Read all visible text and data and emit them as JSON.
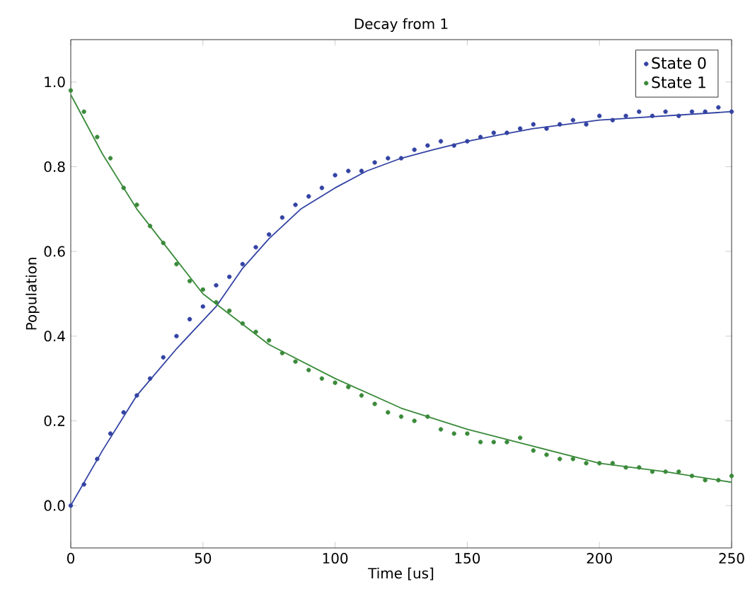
{
  "chart_data": {
    "type": "scatter",
    "title": "Decay from 1",
    "xlabel": "Time [us]",
    "ylabel": "Population",
    "xlim": [
      0,
      250
    ],
    "ylim": [
      -0.1,
      1.1
    ],
    "xticks": [
      0,
      50,
      100,
      150,
      200,
      250
    ],
    "yticks": [
      {
        "value": 0,
        "label": "0.0"
      },
      {
        "value": 0.2,
        "label": "0.2"
      },
      {
        "value": 0.4,
        "label": "0.4"
      },
      {
        "value": 0.6,
        "label": "0.6"
      },
      {
        "value": 0.8,
        "label": "0.8"
      },
      {
        "value": 1,
        "label": "1.0"
      }
    ],
    "legend": "top right",
    "grid": false,
    "x": [
      0,
      5,
      10,
      15,
      20,
      25,
      30,
      35,
      40,
      45,
      50,
      55,
      60,
      65,
      70,
      75,
      80,
      85,
      90,
      95,
      100,
      105,
      110,
      115,
      120,
      125,
      130,
      135,
      140,
      145,
      150,
      155,
      160,
      165,
      170,
      175,
      180,
      185,
      190,
      195,
      200,
      205,
      210,
      215,
      220,
      225,
      230,
      235,
      240,
      245,
      250
    ],
    "series": [
      {
        "name": "State 0",
        "marker": "circle",
        "color": "#3343a3",
        "values": [
          0.0,
          0.05,
          0.11,
          0.17,
          0.22,
          0.26,
          0.3,
          0.35,
          0.4,
          0.44,
          0.47,
          0.52,
          0.54,
          0.57,
          0.61,
          0.64,
          0.68,
          0.71,
          0.73,
          0.75,
          0.78,
          0.79,
          0.79,
          0.81,
          0.82,
          0.82,
          0.84,
          0.85,
          0.86,
          0.85,
          0.86,
          0.87,
          0.88,
          0.88,
          0.89,
          0.9,
          0.89,
          0.9,
          0.91,
          0.9,
          0.92,
          0.91,
          0.92,
          0.93,
          0.92,
          0.93,
          0.92,
          0.93,
          0.93,
          0.94,
          0.93
        ]
      },
      {
        "name": "State 1",
        "marker": "circle",
        "color": "#3a8a3a",
        "values": [
          0.98,
          0.93,
          0.87,
          0.82,
          0.75,
          0.71,
          0.66,
          0.62,
          0.57,
          0.53,
          0.51,
          0.48,
          0.46,
          0.43,
          0.41,
          0.39,
          0.36,
          0.34,
          0.32,
          0.3,
          0.29,
          0.28,
          0.26,
          0.24,
          0.22,
          0.21,
          0.2,
          0.21,
          0.18,
          0.17,
          0.17,
          0.15,
          0.15,
          0.15,
          0.16,
          0.13,
          0.12,
          0.11,
          0.11,
          0.1,
          0.1,
          0.1,
          0.09,
          0.09,
          0.08,
          0.08,
          0.08,
          0.07,
          0.06,
          0.06,
          0.07
        ]
      },
      {
        "type": "line",
        "marker": "none",
        "color": "#3343a3",
        "x": [
          0,
          12,
          25,
          40,
          55,
          65,
          75,
          87,
          100,
          112,
          125,
          137,
          150,
          162,
          175,
          200,
          225,
          250
        ],
        "values": [
          0.0,
          0.13,
          0.26,
          0.37,
          0.47,
          0.56,
          0.63,
          0.7,
          0.75,
          0.79,
          0.82,
          0.84,
          0.86,
          0.875,
          0.89,
          0.91,
          0.92,
          0.93
        ]
      },
      {
        "type": "line",
        "marker": "none",
        "color": "#3a8a3a",
        "x": [
          0,
          12,
          25,
          40,
          50,
          75,
          100,
          125,
          150,
          175,
          200,
          225,
          250
        ],
        "values": [
          0.97,
          0.83,
          0.7,
          0.58,
          0.5,
          0.38,
          0.3,
          0.23,
          0.18,
          0.14,
          0.1,
          0.08,
          0.055
        ]
      }
    ]
  }
}
